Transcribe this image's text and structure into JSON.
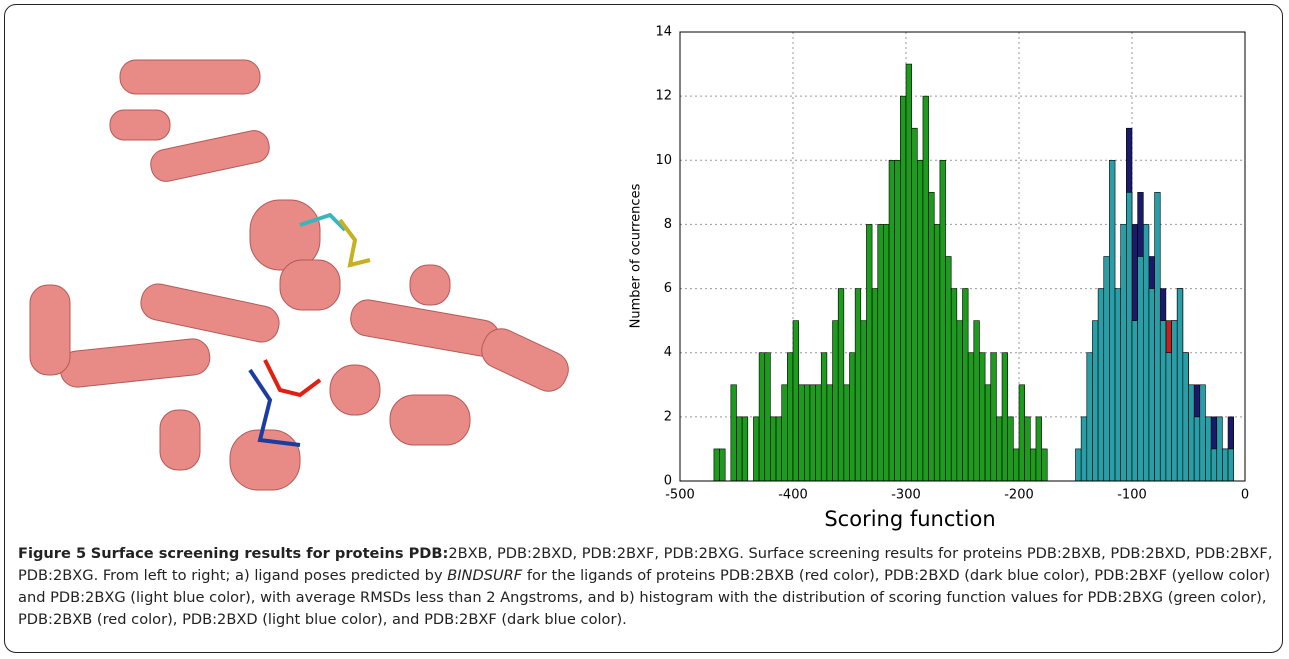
{
  "figure_label": "Figure 5",
  "caption": {
    "bold": "Surface screening results for proteins PDB:",
    "lead": "2BXB, PDB:2BXD, PDB:2BXF, PDB:2BXG. Surface screening results for proteins PDB:2BXB, PDB:2BXD, PDB:2BXF, PDB:2BXG. From left to right; a) ligand poses predicted by",
    "tool": "BINDSURF",
    "rest": "for the ligands of proteins PDB:2BXB (red color), PDB:2BXD (dark blue color), PDB:2BXF (yellow color) and PDB:2BXG (light blue color), with average RMSDs less than 2 Angstroms, and b) histogram with the distribution of scoring function values for PDB:2BXG (green color), PDB:2BXB (red color), PDB:2BXD (light blue color), and PDB:2BXF (dark blue color)."
  },
  "chart_data": {
    "type": "histogram",
    "xlabel": "Scoring function",
    "ylabel": "Number of ocurrences",
    "xlim": [
      -500,
      0
    ],
    "xticks": [
      -500,
      -400,
      -300,
      -200,
      -100,
      0
    ],
    "ylim": [
      0,
      14
    ],
    "yticks": [
      0,
      2,
      4,
      6,
      8,
      10,
      12,
      14
    ],
    "grid": true,
    "series": [
      {
        "color": "#1e9a1e",
        "bins": [
          -470,
          -465,
          -460,
          -455,
          -450,
          -445,
          -440,
          -435,
          -430,
          -425,
          -420,
          -415,
          -410,
          -405,
          -400,
          -395,
          -390,
          -385,
          -380,
          -375,
          -370,
          -365,
          -360,
          -355,
          -350,
          -345,
          -340,
          -335,
          -330,
          -325,
          -320,
          -315,
          -310,
          -305,
          -300,
          -295,
          -290,
          -285,
          -280,
          -275,
          -270,
          -265,
          -260,
          -255,
          -250,
          -245,
          -240,
          -235,
          -230,
          -225,
          -220,
          -215,
          -210,
          -205,
          -200,
          -195,
          -190,
          -185,
          -180,
          -175
        ],
        "values": [
          1,
          1,
          0,
          3,
          2,
          2,
          0,
          2,
          4,
          4,
          2,
          2,
          3,
          4,
          5,
          3,
          3,
          3,
          3,
          4,
          3,
          5,
          6,
          3,
          4,
          6,
          5,
          8,
          6,
          8,
          8,
          10,
          10,
          12,
          13,
          11,
          10,
          12,
          9,
          8,
          10,
          7,
          6,
          5,
          6,
          4,
          5,
          4,
          3,
          4,
          2,
          4,
          2,
          1,
          3,
          2,
          1,
          2,
          1
        ]
      },
      {
        "color": "#1a1a6a",
        "bins": [
          -140,
          -135,
          -130,
          -125,
          -120,
          -115,
          -110,
          -105,
          -100,
          -95,
          -90,
          -85,
          -80,
          -75,
          -70,
          -65,
          -60,
          -55,
          -50,
          -45,
          -40,
          -35,
          -30,
          -25,
          -20,
          -15,
          -10
        ],
        "values": [
          1,
          3,
          4,
          5,
          6,
          5,
          7,
          11,
          8,
          9,
          6,
          7,
          5,
          6,
          4,
          5,
          3,
          4,
          2,
          3,
          2,
          1,
          2,
          1,
          1,
          2
        ]
      },
      {
        "color": "#c42020",
        "bins": [
          -100,
          -95,
          -90,
          -85,
          -80,
          -75,
          -70,
          -65,
          -60,
          -55,
          -50,
          -45,
          -40
        ],
        "values": [
          1,
          2,
          3,
          2,
          4,
          3,
          5,
          4,
          6,
          4,
          2,
          1
        ]
      },
      {
        "color": "#2a9ea6",
        "bins": [
          -150,
          -145,
          -140,
          -135,
          -130,
          -125,
          -120,
          -115,
          -110,
          -105,
          -100,
          -95,
          -90,
          -85,
          -80,
          -75,
          -70,
          -65,
          -60,
          -55,
          -50,
          -45,
          -40,
          -35,
          -30,
          -25,
          -20,
          -15,
          -10
        ],
        "values": [
          1,
          2,
          4,
          5,
          6,
          7,
          10,
          6,
          8,
          9,
          5,
          7,
          8,
          6,
          9,
          5,
          4,
          5,
          6,
          4,
          3,
          2,
          3,
          2,
          1,
          2,
          1,
          1
        ]
      }
    ]
  }
}
